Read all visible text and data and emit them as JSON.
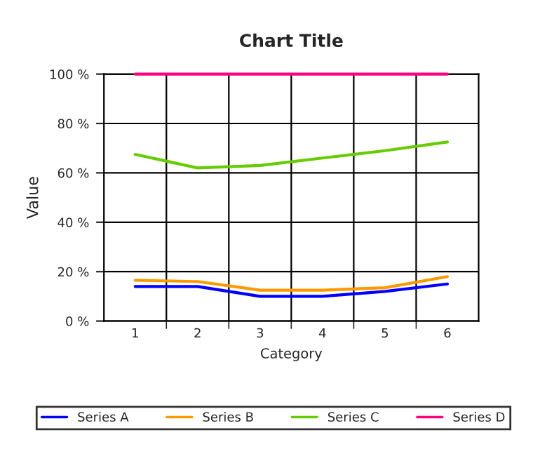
{
  "chart_data": {
    "type": "line",
    "title": "Chart Title",
    "xlabel": "Category",
    "ylabel": "Value",
    "categories": [
      "1",
      "2",
      "3",
      "4",
      "5",
      "6"
    ],
    "series": [
      {
        "name": "Series A",
        "color": "#0000ff",
        "values": [
          14,
          14,
          10,
          10,
          12,
          15
        ]
      },
      {
        "name": "Series B",
        "color": "#ff9900",
        "values": [
          16.5,
          16,
          12.5,
          12.5,
          13.5,
          18
        ]
      },
      {
        "name": "Series C",
        "color": "#66cc00",
        "values": [
          67.5,
          62,
          63,
          66,
          69,
          72.5
        ]
      },
      {
        "name": "Series D",
        "color": "#ff0080",
        "values": [
          100,
          100,
          100,
          100,
          100,
          100
        ]
      }
    ],
    "ylim": [
      0,
      100
    ],
    "yticks": [
      {
        "value": 0,
        "label": "0 %"
      },
      {
        "value": 20,
        "label": "20 %"
      },
      {
        "value": 40,
        "label": "40 %"
      },
      {
        "value": 60,
        "label": "60 %"
      },
      {
        "value": 80,
        "label": "80 %"
      },
      {
        "value": 100,
        "label": "100 %"
      }
    ],
    "grid": true,
    "legend": "bottom",
    "marker": "none",
    "line_style": "solid"
  }
}
